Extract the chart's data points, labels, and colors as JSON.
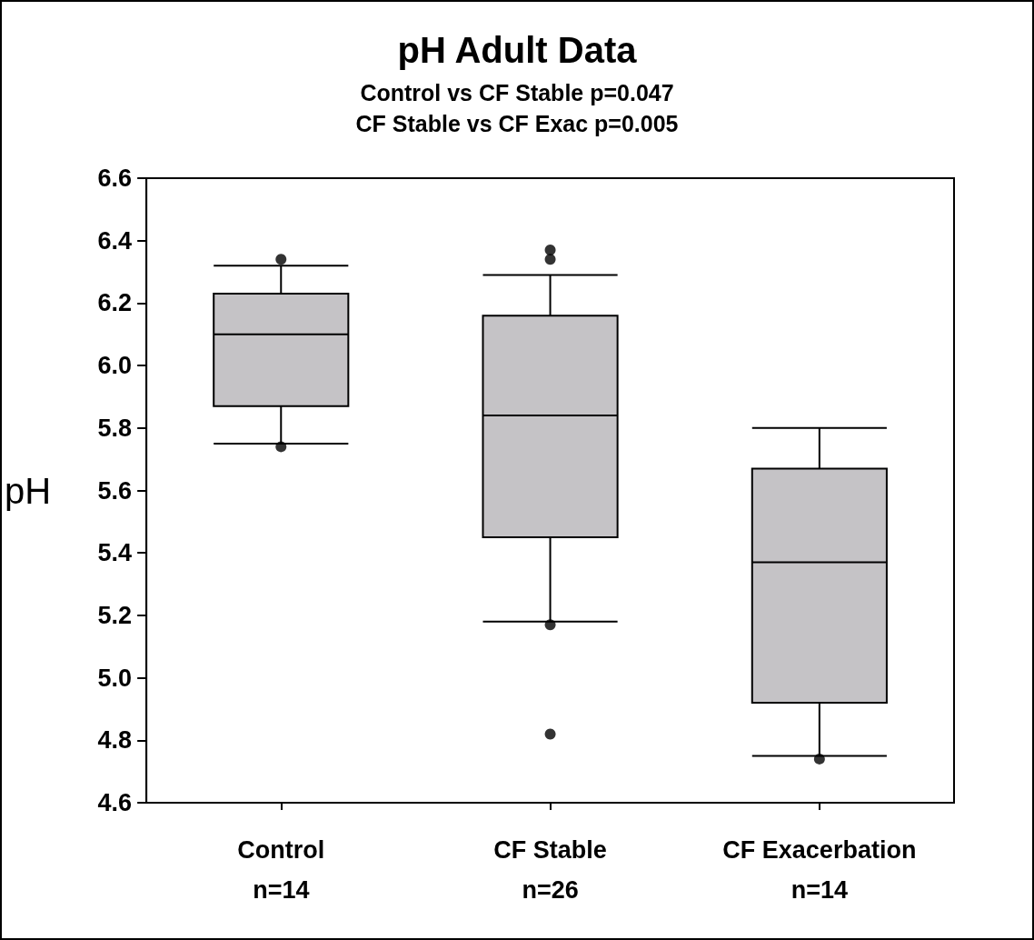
{
  "chart_data": {
    "type": "box",
    "title": "pH Adult Data",
    "subtitle": "Control vs CF Stable p=0.047\nCF Stable vs CF Exac p=0.005",
    "ylabel": "pH",
    "categories": [
      "Control\nn=14",
      "CF Stable\nn=26",
      "CF Exacerbation\nn=14"
    ],
    "series": [
      {
        "color": "#c5c3c6",
        "boxes": [
          {
            "low": 5.75,
            "q1": 5.87,
            "median": 6.1,
            "q3": 6.23,
            "high": 6.32,
            "outliers": [
              6.34,
              5.74
            ]
          },
          {
            "low": 5.18,
            "q1": 5.45,
            "median": 5.84,
            "q3": 6.16,
            "high": 6.29,
            "outliers": [
              6.37,
              6.34,
              5.17,
              4.82
            ]
          },
          {
            "low": 4.75,
            "q1": 4.92,
            "median": 5.37,
            "q3": 5.67,
            "high": 5.8,
            "outliers": [
              4.74
            ]
          }
        ]
      }
    ],
    "ylim": [
      4.6,
      6.6
    ],
    "yticks": [
      4.6,
      4.8,
      {
        "value": 5,
        "label": "5.0"
      },
      5.2,
      5.4,
      5.6,
      5.8,
      {
        "value": 6,
        "label": "6.0"
      },
      6.2,
      6.4,
      6.6
    ],
    "grid": false
  }
}
